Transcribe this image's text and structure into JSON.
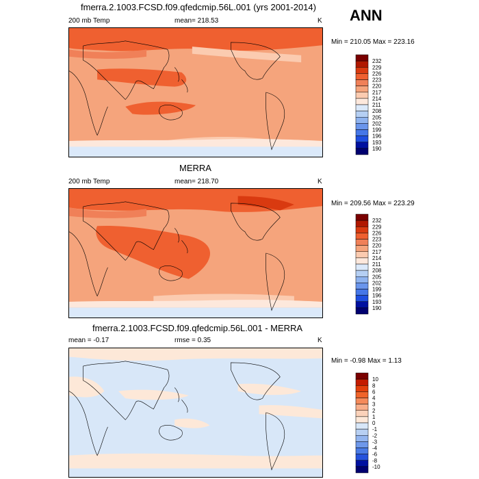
{
  "season": "ANN",
  "panels": [
    {
      "title": "fmerra.2.1003.FCSD.f09.qfedcmip.56L.001 (yrs 2001-2014)",
      "left_label": "200 mb Temp",
      "center_label": "mean= 218.53",
      "unit": "K",
      "minmax": "Min = 210.05 Max = 223.16",
      "colorbar_levels": [
        "232",
        "229",
        "226",
        "223",
        "220",
        "217",
        "214",
        "211",
        "208",
        "205",
        "202",
        "199",
        "196",
        "193",
        "190"
      ]
    },
    {
      "title": "MERRA",
      "left_label": "200 mb Temp",
      "center_label": "mean= 218.70",
      "unit": "K",
      "minmax": "Min = 209.56 Max = 223.29",
      "colorbar_levels": [
        "232",
        "229",
        "226",
        "223",
        "220",
        "217",
        "214",
        "211",
        "208",
        "205",
        "202",
        "199",
        "196",
        "193",
        "190"
      ]
    },
    {
      "title": "fmerra.2.1003.FCSD.f09.qfedcmip.56L.001 - MERRA",
      "left_label": "mean =  -0.17",
      "center_label": "rmse =   0.35",
      "unit": "K",
      "minmax": "Min =  -0.98 Max =   1.13",
      "colorbar_levels": [
        "10",
        "8",
        "6",
        "4",
        "3",
        "2",
        "1",
        "0",
        "-1",
        "-2",
        "-3",
        "-4",
        "-6",
        "-8",
        "-10"
      ]
    }
  ],
  "colors": {
    "temp_scale": [
      "#7a0000",
      "#b01800",
      "#d93a10",
      "#ef6030",
      "#f08058",
      "#f5a47c",
      "#fbcbb0",
      "#fde8dc",
      "#dbe9fa",
      "#b5cff3",
      "#8fb3ef",
      "#6a95ec",
      "#4677e8",
      "#1f4ee0",
      "#0010a0",
      "#000070"
    ],
    "diff_scale": [
      "#7a0000",
      "#c41c00",
      "#e3400c",
      "#f0642a",
      "#f58a5a",
      "#f8ae8a",
      "#fbd2ba",
      "#fde8d8",
      "#d8e7f8",
      "#b8d0f3",
      "#93b5ef",
      "#6e98ea",
      "#4a7be5",
      "#2552dc",
      "#0010a0",
      "#000070"
    ],
    "coast": "#000000"
  }
}
